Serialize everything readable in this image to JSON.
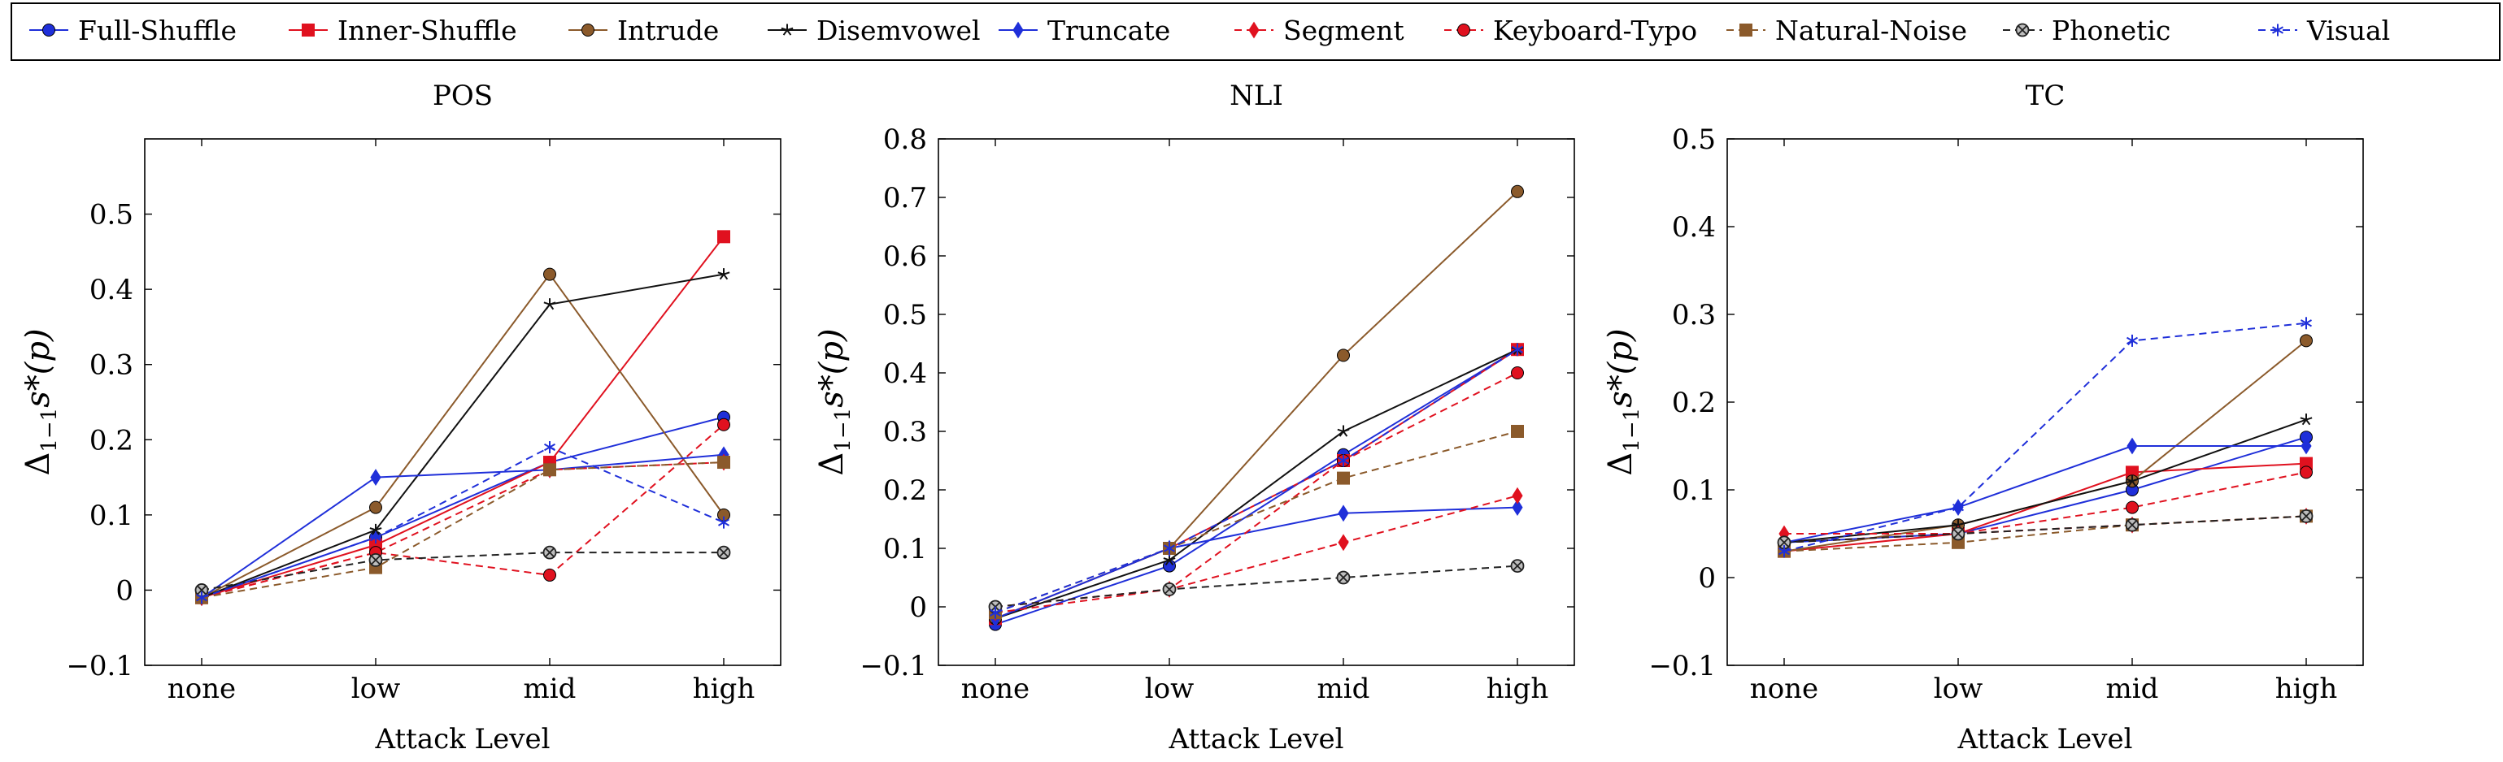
{
  "legend": {
    "placement": "top",
    "entries": [
      {
        "name": "Full-Shuffle",
        "color": "#1f2fd9",
        "marker": "circle",
        "dash": "solid"
      },
      {
        "name": "Inner-Shuffle",
        "color": "#e0111f",
        "marker": "square",
        "dash": "solid"
      },
      {
        "name": "Intrude",
        "color": "#8b5a2b",
        "marker": "circle",
        "dash": "solid"
      },
      {
        "name": "Disemvowel",
        "color": "#111111",
        "marker": "star",
        "dash": "solid"
      },
      {
        "name": "Truncate",
        "color": "#1f2fd9",
        "marker": "diamond",
        "dash": "solid"
      },
      {
        "name": "Segment",
        "color": "#e0111f",
        "marker": "diamond",
        "dash": "dashed"
      },
      {
        "name": "Keyboard-Typo",
        "color": "#e0111f",
        "marker": "circle",
        "dash": "dashed"
      },
      {
        "name": "Natural-Noise",
        "color": "#8b5a2b",
        "marker": "square",
        "dash": "dashed"
      },
      {
        "name": "Phonetic",
        "color": "#222222",
        "marker": "otimes",
        "dash": "dashed"
      },
      {
        "name": "Visual",
        "color": "#1f2fd9",
        "marker": "asterisk",
        "dash": "dashed"
      }
    ]
  },
  "chart_data": [
    {
      "type": "line",
      "title": "POS",
      "xlabel": "Attack Level",
      "ylabel_main": "Δ",
      "ylabel_sub": "1−1",
      "ylabel_rest": "s*(p)",
      "categories": [
        "none",
        "low",
        "mid",
        "high"
      ],
      "ylim": [
        -0.1,
        0.6
      ],
      "yticks": [
        -0.1,
        0,
        0.1,
        0.2,
        0.3,
        0.4,
        0.5
      ],
      "ytick_labels": [
        "−0.1",
        "0",
        "0.1",
        "0.2",
        "0.3",
        "0.4",
        "0.5"
      ],
      "grid": false,
      "series": [
        {
          "name": "Full-Shuffle",
          "values": [
            -0.01,
            0.07,
            0.17,
            0.23
          ]
        },
        {
          "name": "Inner-Shuffle",
          "values": [
            -0.01,
            0.06,
            0.17,
            0.47
          ]
        },
        {
          "name": "Intrude",
          "values": [
            -0.01,
            0.11,
            0.42,
            0.1
          ]
        },
        {
          "name": "Disemvowel",
          "values": [
            -0.01,
            0.08,
            0.38,
            0.42
          ]
        },
        {
          "name": "Truncate",
          "values": [
            -0.01,
            0.15,
            0.16,
            0.18
          ]
        },
        {
          "name": "Segment",
          "values": [
            -0.01,
            0.05,
            0.16,
            0.17
          ]
        },
        {
          "name": "Keyboard-Typo",
          "values": [
            -0.01,
            0.05,
            0.02,
            0.22
          ]
        },
        {
          "name": "Natural-Noise",
          "values": [
            -0.01,
            0.03,
            0.16,
            0.17
          ]
        },
        {
          "name": "Phonetic",
          "values": [
            0.0,
            0.04,
            0.05,
            0.05
          ]
        },
        {
          "name": "Visual",
          "values": [
            -0.01,
            0.07,
            0.19,
            0.09
          ]
        }
      ]
    },
    {
      "type": "line",
      "title": "NLI",
      "xlabel": "Attack Level",
      "ylabel_main": "Δ",
      "ylabel_sub": "1−1",
      "ylabel_rest": "s*(p)",
      "categories": [
        "none",
        "low",
        "mid",
        "high"
      ],
      "ylim": [
        -0.1,
        0.8
      ],
      "yticks": [
        -0.1,
        0,
        0.1,
        0.2,
        0.3,
        0.4,
        0.5,
        0.6,
        0.7,
        0.8
      ],
      "ytick_labels": [
        "−0.1",
        "0",
        "0.1",
        "0.2",
        "0.3",
        "0.4",
        "0.5",
        "0.6",
        "0.7",
        "0.8"
      ],
      "grid": false,
      "series": [
        {
          "name": "Full-Shuffle",
          "values": [
            -0.03,
            0.07,
            0.26,
            0.44
          ]
        },
        {
          "name": "Inner-Shuffle",
          "values": [
            -0.02,
            0.1,
            0.25,
            0.44
          ]
        },
        {
          "name": "Intrude",
          "values": [
            -0.02,
            0.1,
            0.43,
            0.71
          ]
        },
        {
          "name": "Disemvowel",
          "values": [
            -0.02,
            0.08,
            0.3,
            0.44
          ]
        },
        {
          "name": "Truncate",
          "values": [
            -0.02,
            0.1,
            0.16,
            0.17
          ]
        },
        {
          "name": "Segment",
          "values": [
            -0.01,
            0.03,
            0.11,
            0.19
          ]
        },
        {
          "name": "Keyboard-Typo",
          "values": [
            0.0,
            0.03,
            0.25,
            0.4
          ]
        },
        {
          "name": "Natural-Noise",
          "values": [
            -0.01,
            0.1,
            0.22,
            0.3
          ]
        },
        {
          "name": "Phonetic",
          "values": [
            0.0,
            0.03,
            0.05,
            0.07
          ]
        },
        {
          "name": "Visual",
          "values": [
            -0.01,
            0.1,
            0.25,
            0.44
          ]
        }
      ]
    },
    {
      "type": "line",
      "title": "TC",
      "xlabel": "Attack Level",
      "ylabel_main": "Δ",
      "ylabel_sub": "1−1",
      "ylabel_rest": "s*(p)",
      "categories": [
        "none",
        "low",
        "mid",
        "high"
      ],
      "ylim": [
        -0.1,
        0.5
      ],
      "yticks": [
        -0.1,
        0,
        0.1,
        0.2,
        0.3,
        0.4,
        0.5
      ],
      "ytick_labels": [
        "−0.1",
        "0",
        "0.1",
        "0.2",
        "0.3",
        "0.4",
        "0.5"
      ],
      "grid": false,
      "series": [
        {
          "name": "Full-Shuffle",
          "values": [
            0.04,
            0.05,
            0.1,
            0.16
          ]
        },
        {
          "name": "Inner-Shuffle",
          "values": [
            0.03,
            0.05,
            0.12,
            0.13
          ]
        },
        {
          "name": "Intrude",
          "values": [
            0.03,
            0.06,
            0.11,
            0.27
          ]
        },
        {
          "name": "Disemvowel",
          "values": [
            0.04,
            0.06,
            0.11,
            0.18
          ]
        },
        {
          "name": "Truncate",
          "values": [
            0.04,
            0.08,
            0.15,
            0.15
          ]
        },
        {
          "name": "Segment",
          "values": [
            0.05,
            0.05,
            0.06,
            0.07
          ]
        },
        {
          "name": "Keyboard-Typo",
          "values": [
            0.04,
            0.05,
            0.08,
            0.12
          ]
        },
        {
          "name": "Natural-Noise",
          "values": [
            0.03,
            0.04,
            0.06,
            0.07
          ]
        },
        {
          "name": "Phonetic",
          "values": [
            0.04,
            0.05,
            0.06,
            0.07
          ]
        },
        {
          "name": "Visual",
          "values": [
            0.03,
            0.08,
            0.27,
            0.29
          ]
        }
      ]
    }
  ]
}
